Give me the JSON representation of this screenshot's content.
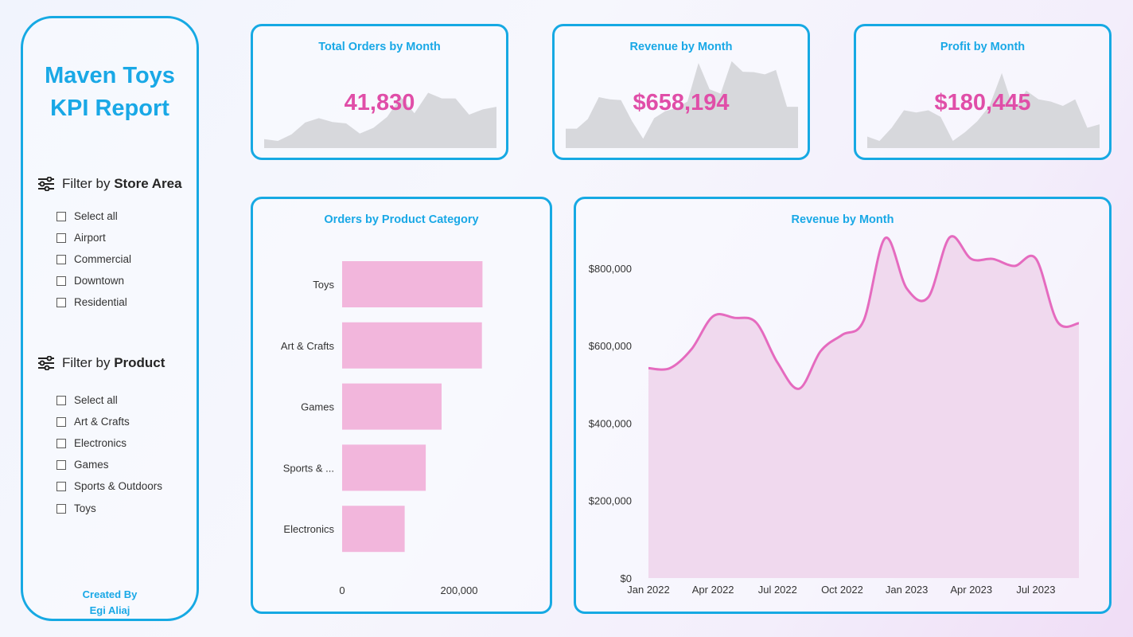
{
  "sidebar": {
    "title_line1": "Maven Toys",
    "title_line2": "KPI Report",
    "filter_store": {
      "prefix": "Filter by ",
      "label": "Store Area",
      "options": [
        "Select all",
        "Airport",
        "Commercial",
        "Downtown",
        "Residential"
      ]
    },
    "filter_product": {
      "prefix": "Filter by ",
      "label": "Product",
      "options": [
        "Select all",
        "Art & Crafts",
        "Electronics",
        "Games",
        "Sports & Outdoors",
        "Toys"
      ]
    },
    "credit_line1": "Created By",
    "credit_line2": "Egi Aliaj"
  },
  "kpis": [
    {
      "title": "Total Orders by Month",
      "value": "41,830",
      "spark": [
        0.04,
        0.0,
        0.15,
        0.42,
        0.52,
        0.43,
        0.4,
        0.17,
        0.3,
        0.55,
        1.0,
        0.63,
        1.1,
        0.97,
        0.97,
        0.6,
        0.72,
        0.78
      ]
    },
    {
      "title": "Revenue by Month",
      "value": "$658,194",
      "spark": [
        0.28,
        0.28,
        0.5,
        1.0,
        0.95,
        0.93,
        0.45,
        0.05,
        0.52,
        0.68,
        0.75,
        0.9,
        1.78,
        1.18,
        1.08,
        1.82,
        1.58,
        1.57,
        1.52,
        1.62,
        0.78,
        0.78
      ]
    },
    {
      "title": "Profit by Month",
      "value": "$180,445",
      "spark": [
        0.1,
        0.0,
        0.3,
        0.7,
        0.65,
        0.7,
        0.55,
        0.0,
        0.2,
        0.45,
        0.8,
        1.55,
        0.7,
        1.15,
        0.95,
        0.9,
        0.8,
        0.95,
        0.3,
        0.38
      ]
    }
  ],
  "chart_data": [
    {
      "type": "bar",
      "orientation": "horizontal",
      "title": "Orders by Product Category",
      "categories": [
        "Toys",
        "Art & Crafts",
        "Games",
        "Sports & ...",
        "Electronics"
      ],
      "values": [
        240000,
        239000,
        170000,
        143000,
        107000
      ],
      "xlim": [
        0,
        400000
      ],
      "xticks": [
        0,
        200000
      ],
      "xtick_labels": [
        "0",
        "200,000"
      ],
      "bar_color": "#f2b6dc"
    },
    {
      "type": "area",
      "title": "Revenue by Month",
      "x": [
        "Jan 2022",
        "Feb 2022",
        "Mar 2022",
        "Apr 2022",
        "May 2022",
        "Jun 2022",
        "Jul 2022",
        "Aug 2022",
        "Sep 2022",
        "Oct 2022",
        "Nov 2022",
        "Dec 2022",
        "Jan 2023",
        "Feb 2023",
        "Mar 2023",
        "Apr 2023",
        "May 2023",
        "Jun 2023",
        "Jul 2023",
        "Aug 2023",
        "Sep 2023"
      ],
      "values": [
        542000,
        542000,
        591000,
        676000,
        672000,
        660000,
        556000,
        489000,
        586000,
        628000,
        665000,
        878000,
        748000,
        725000,
        880000,
        824000,
        824000,
        806000,
        825000,
        662000,
        658000
      ],
      "xtick_labels": [
        "Jan 2022",
        "Apr 2022",
        "Jul 2022",
        "Oct 2022",
        "Jan 2023",
        "Apr 2023",
        "Jul 2023"
      ],
      "xtick_index": [
        0,
        3,
        6,
        9,
        12,
        15,
        18
      ],
      "ylim": [
        0,
        880000
      ],
      "yticks": [
        0,
        200000,
        400000,
        600000,
        800000
      ],
      "ytick_labels": [
        "$0",
        "$200,000",
        "$400,000",
        "$600,000",
        "$800,000"
      ],
      "line_color": "#e56bbf",
      "fill_color": "#f0d9ee"
    }
  ],
  "colors": {
    "accent": "#16a9e3",
    "value": "#e04ea8",
    "spark_fill": "#d7d8dc"
  }
}
